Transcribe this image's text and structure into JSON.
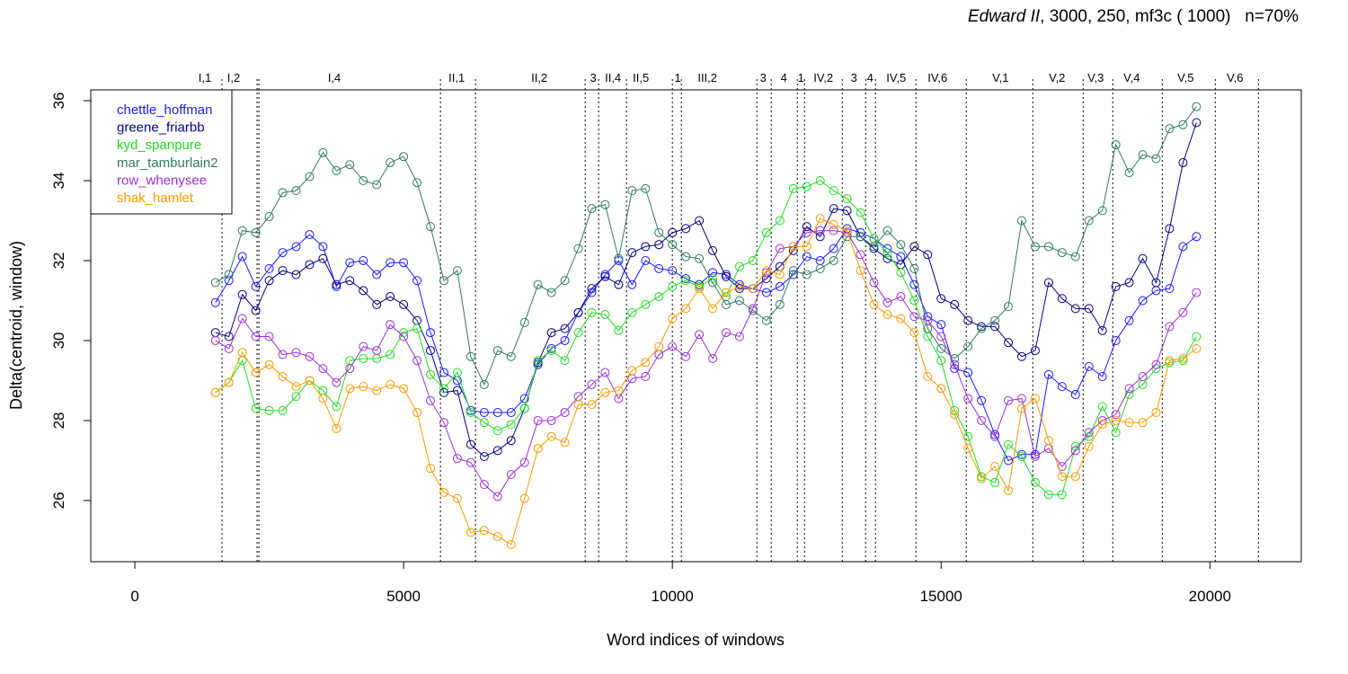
{
  "chart_data": {
    "type": "line",
    "title_italic": "Edward II",
    "title_rest": ", 3000, 250, mf3c ( 1000)   n=70%",
    "x_label": "Word indices of windows",
    "y_label": "Delta(centroid, window)",
    "xlim": [
      -820,
      21700
    ],
    "ylim": [
      24.47,
      36.27
    ],
    "xticks": [
      0,
      5000,
      10000,
      15000,
      20000
    ],
    "yticks": [
      26,
      28,
      30,
      32,
      34,
      36
    ],
    "legend": "top-left",
    "x": [
      1500,
      1750,
      2000,
      2250,
      2500,
      2750,
      3000,
      3250,
      3500,
      3750,
      4000,
      4250,
      4500,
      4750,
      5000,
      5250,
      5500,
      5750,
      6000,
      6250,
      6500,
      6750,
      7000,
      7250,
      7500,
      7750,
      8000,
      8250,
      8500,
      8750,
      9000,
      9250,
      9500,
      9750,
      10000,
      10250,
      10500,
      10750,
      11000,
      11250,
      11500,
      11750,
      12000,
      12250,
      12500,
      12750,
      13000,
      13250,
      13500,
      13750,
      14000,
      14250,
      14500,
      14750,
      15000,
      15250,
      15500,
      15750,
      16000,
      16250,
      16500,
      16750,
      17000,
      17250,
      17500,
      17750,
      18000,
      18250,
      18500,
      18750,
      19000,
      19250,
      19500,
      19750
    ],
    "series": [
      {
        "name": "chettle_hoffman",
        "color": "#1a1aff",
        "values": [
          30.95,
          31.5,
          32.1,
          31.35,
          31.8,
          32.2,
          32.35,
          32.65,
          32.35,
          31.35,
          31.95,
          32.0,
          31.65,
          31.95,
          31.95,
          31.5,
          30.2,
          29.2,
          29.0,
          28.25,
          28.2,
          28.2,
          28.2,
          28.55,
          29.4,
          29.8,
          30.0,
          30.7,
          31.2,
          31.65,
          32.0,
          31.4,
          32.0,
          31.8,
          31.75,
          31.55,
          31.4,
          31.7,
          31.65,
          31.4,
          31.3,
          31.2,
          31.35,
          31.65,
          32.1,
          32.0,
          32.3,
          32.8,
          32.7,
          32.55,
          32.3,
          32.1,
          31.4,
          30.6,
          30.4,
          29.3,
          29.2,
          28.5,
          27.65,
          27.0,
          27.15,
          27.15,
          29.15,
          28.85,
          28.65,
          29.35,
          29.1,
          30.0,
          30.5,
          31.0,
          31.25,
          31.3,
          32.35,
          32.6
        ]
      },
      {
        "name": "greene_friarbb",
        "color": "#000080",
        "values": [
          30.2,
          30.1,
          31.15,
          30.75,
          31.5,
          31.75,
          31.65,
          31.9,
          32.05,
          31.4,
          31.5,
          31.25,
          30.9,
          31.1,
          30.9,
          30.5,
          29.75,
          28.7,
          28.75,
          27.4,
          27.1,
          27.25,
          27.5,
          28.3,
          29.45,
          30.2,
          30.3,
          30.7,
          31.3,
          31.6,
          31.4,
          32.2,
          32.35,
          32.4,
          32.7,
          32.8,
          33.0,
          32.25,
          31.6,
          31.3,
          31.3,
          31.55,
          31.85,
          32.25,
          32.85,
          32.6,
          33.3,
          33.25,
          32.6,
          32.3,
          32.05,
          31.9,
          32.35,
          32.15,
          31.05,
          30.9,
          30.5,
          30.35,
          30.35,
          29.95,
          29.6,
          29.75,
          31.45,
          31.05,
          30.8,
          30.8,
          30.25,
          31.35,
          31.45,
          32.05,
          31.45,
          32.8,
          34.45,
          35.45
        ]
      },
      {
        "name": "kyd_spanpure",
        "color": "#22dd22",
        "values": [
          28.7,
          28.95,
          29.5,
          28.3,
          28.25,
          28.25,
          28.6,
          29.0,
          28.75,
          28.35,
          29.5,
          29.55,
          29.55,
          29.65,
          30.2,
          30.3,
          29.15,
          28.8,
          29.2,
          28.2,
          27.95,
          27.75,
          27.9,
          28.3,
          29.5,
          29.75,
          29.5,
          30.2,
          30.7,
          30.65,
          30.25,
          30.7,
          30.9,
          31.1,
          31.35,
          31.5,
          31.35,
          31.55,
          31.1,
          31.85,
          32.0,
          32.7,
          33.0,
          33.8,
          33.85,
          34.0,
          33.75,
          33.55,
          33.2,
          32.55,
          32.2,
          31.7,
          31.0,
          30.1,
          29.5,
          28.25,
          27.6,
          26.6,
          26.45,
          27.4,
          27.1,
          26.45,
          26.15,
          26.15,
          27.35,
          27.6,
          28.35,
          27.7,
          28.65,
          28.9,
          29.3,
          29.45,
          29.5,
          30.1
        ]
      },
      {
        "name": "mar_tamburlain2",
        "color": "#2f7a5f",
        "values": [
          31.45,
          31.65,
          32.75,
          32.7,
          33.1,
          33.7,
          33.75,
          34.1,
          34.7,
          34.25,
          34.4,
          34.0,
          33.9,
          34.45,
          34.6,
          33.95,
          32.85,
          31.5,
          31.75,
          29.6,
          28.9,
          29.75,
          29.6,
          30.45,
          31.4,
          31.2,
          31.5,
          32.3,
          33.3,
          33.4,
          32.05,
          33.75,
          33.8,
          32.7,
          32.4,
          32.1,
          32.05,
          31.45,
          30.9,
          31.0,
          30.75,
          30.5,
          30.9,
          31.75,
          31.65,
          31.8,
          32.0,
          32.6,
          32.6,
          32.35,
          32.75,
          32.4,
          31.8,
          30.3,
          29.8,
          29.55,
          29.85,
          30.3,
          30.5,
          30.85,
          33.0,
          32.35,
          32.35,
          32.2,
          32.1,
          33.0,
          33.25,
          34.9,
          34.2,
          34.65,
          34.55,
          35.3,
          35.4,
          35.85
        ]
      },
      {
        "name": "row_whenysee",
        "color": "#9b30d9",
        "values": [
          30.0,
          29.8,
          30.55,
          30.1,
          30.1,
          29.65,
          29.7,
          29.6,
          29.3,
          28.95,
          29.3,
          29.85,
          29.75,
          30.4,
          30.1,
          29.5,
          28.5,
          27.95,
          27.05,
          26.95,
          26.4,
          26.1,
          26.65,
          26.95,
          28.0,
          28.0,
          28.2,
          28.6,
          28.9,
          29.2,
          28.55,
          29.05,
          29.1,
          29.65,
          29.85,
          29.6,
          30.15,
          29.55,
          30.2,
          30.1,
          30.8,
          31.7,
          32.3,
          32.35,
          32.7,
          32.75,
          32.75,
          32.7,
          32.15,
          31.45,
          30.95,
          31.1,
          30.6,
          30.5,
          30.1,
          29.4,
          28.55,
          28.0,
          27.6,
          28.5,
          28.55,
          27.1,
          27.3,
          26.85,
          27.25,
          27.7,
          28.0,
          28.15,
          28.8,
          29.1,
          29.4,
          30.35,
          30.7,
          31.2
        ]
      },
      {
        "name": "shak_hamlet",
        "color": "#ff9900",
        "values": [
          28.7,
          28.95,
          29.7,
          29.2,
          29.4,
          29.1,
          28.85,
          29.0,
          28.55,
          27.8,
          28.8,
          28.85,
          28.75,
          28.9,
          28.8,
          28.2,
          26.8,
          26.2,
          26.05,
          25.2,
          25.25,
          25.1,
          24.9,
          26.05,
          27.3,
          27.6,
          27.45,
          28.4,
          28.4,
          28.7,
          28.75,
          29.25,
          29.45,
          29.85,
          30.55,
          30.8,
          31.3,
          30.8,
          31.2,
          31.35,
          31.3,
          31.75,
          31.65,
          32.35,
          32.35,
          33.05,
          32.9,
          32.75,
          31.75,
          30.9,
          30.65,
          30.55,
          30.2,
          29.1,
          28.8,
          28.15,
          27.3,
          26.55,
          26.85,
          26.25,
          28.3,
          28.55,
          27.5,
          26.6,
          26.6,
          27.35,
          27.9,
          28.0,
          27.95,
          27.95,
          28.2,
          29.5,
          29.55,
          29.8
        ]
      }
    ],
    "boundaries": [
      1622,
      2274,
      2308,
      5686,
      6338,
      8378,
      8629,
      9147,
      10000,
      10167,
      11572,
      11839,
      12324,
      12458,
      13161,
      13595,
      13779,
      14532,
      15468,
      16706,
      17642,
      18194,
      19114,
      20100,
      20903
    ],
    "scenes": [
      {
        "label": "I,1",
        "x": 1304
      },
      {
        "label": "I,2",
        "x": 1839
      },
      {
        "label": "I,4",
        "x": 3712
      },
      {
        "label": "II,1",
        "x": 5987
      },
      {
        "label": "II,2",
        "x": 7525
      },
      {
        "label": "3",
        "x": 8528
      },
      {
        "label": "II,4",
        "x": 8896
      },
      {
        "label": "II,5",
        "x": 9415
      },
      {
        "label": "1",
        "x": 10100
      },
      {
        "label": "III,2",
        "x": 10652
      },
      {
        "label": "3",
        "x": 11689
      },
      {
        "label": "4",
        "x": 12074
      },
      {
        "label": "1",
        "x": 12391
      },
      {
        "label": "IV,2",
        "x": 12809
      },
      {
        "label": "3",
        "x": 13378
      },
      {
        "label": "4",
        "x": 13679
      },
      {
        "label": "IV,5",
        "x": 14164
      },
      {
        "label": "IV,6",
        "x": 14933
      },
      {
        "label": "V,1",
        "x": 16104
      },
      {
        "label": "V,2",
        "x": 17157
      },
      {
        "label": "V,3",
        "x": 17876
      },
      {
        "label": "V,4",
        "x": 18545
      },
      {
        "label": "V,5",
        "x": 19548
      },
      {
        "label": "V,6",
        "x": 20468
      }
    ]
  }
}
